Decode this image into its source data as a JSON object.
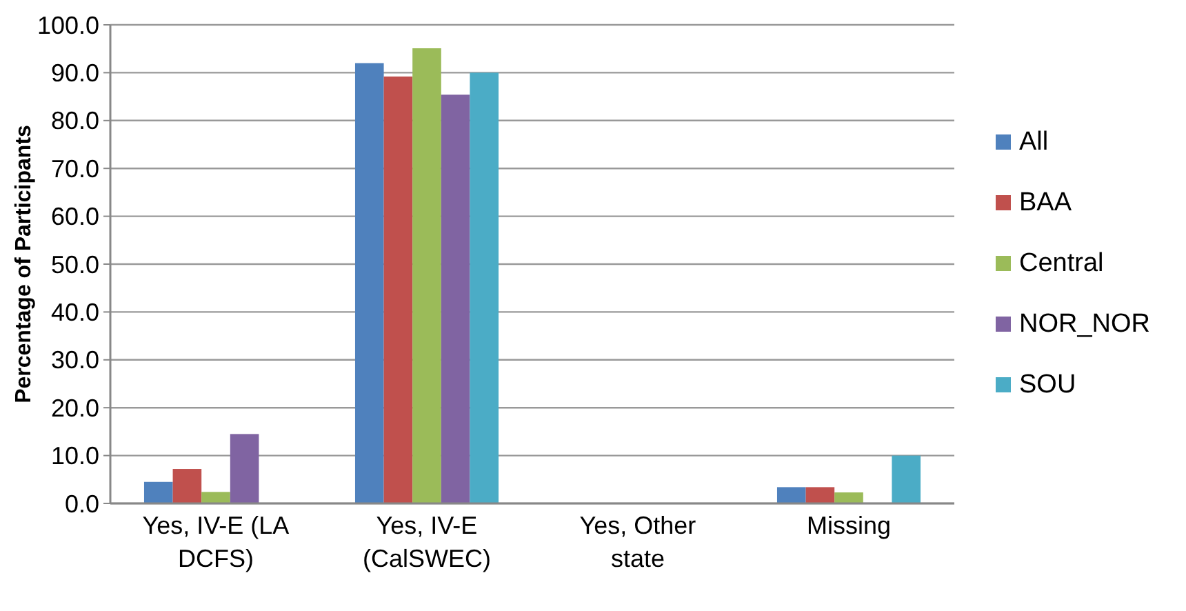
{
  "chart_data": {
    "type": "bar",
    "ylabel": "Percentage of Participants",
    "categories": [
      "Yes, IV-E (LA DCFS)",
      "Yes, IV-E (CalSWEC)",
      "Yes, Other state",
      "Missing"
    ],
    "series": [
      {
        "name": "All",
        "color": "#4f81bd",
        "values": [
          4.5,
          92.0,
          0,
          3.4
        ]
      },
      {
        "name": "BAA",
        "color": "#c0504d",
        "values": [
          7.2,
          89.2,
          0,
          3.4
        ]
      },
      {
        "name": "Central",
        "color": "#9bbb59",
        "values": [
          2.4,
          95.1,
          0,
          2.3
        ]
      },
      {
        "name": "NOR_NOR",
        "color": "#8064a2",
        "values": [
          14.5,
          85.4,
          0,
          0
        ]
      },
      {
        "name": "SOU",
        "color": "#4bacc6",
        "values": [
          0,
          90.0,
          0,
          10.0
        ]
      }
    ],
    "ylim": [
      0,
      100
    ],
    "yticks": [
      {
        "value": 0,
        "label": "0.0"
      },
      {
        "value": 10,
        "label": "10.0"
      },
      {
        "value": 20,
        "label": "20.0"
      },
      {
        "value": 30,
        "label": "30.0"
      },
      {
        "value": 40,
        "label": "40.0"
      },
      {
        "value": 50,
        "label": "50.0"
      },
      {
        "value": 60,
        "label": "60.0"
      },
      {
        "value": 70,
        "label": "70.0"
      },
      {
        "value": 80,
        "label": "80.0"
      },
      {
        "value": 90,
        "label": "90.0"
      },
      {
        "value": 100,
        "label": "100.0"
      }
    ],
    "grid": "y",
    "legend": "right"
  }
}
